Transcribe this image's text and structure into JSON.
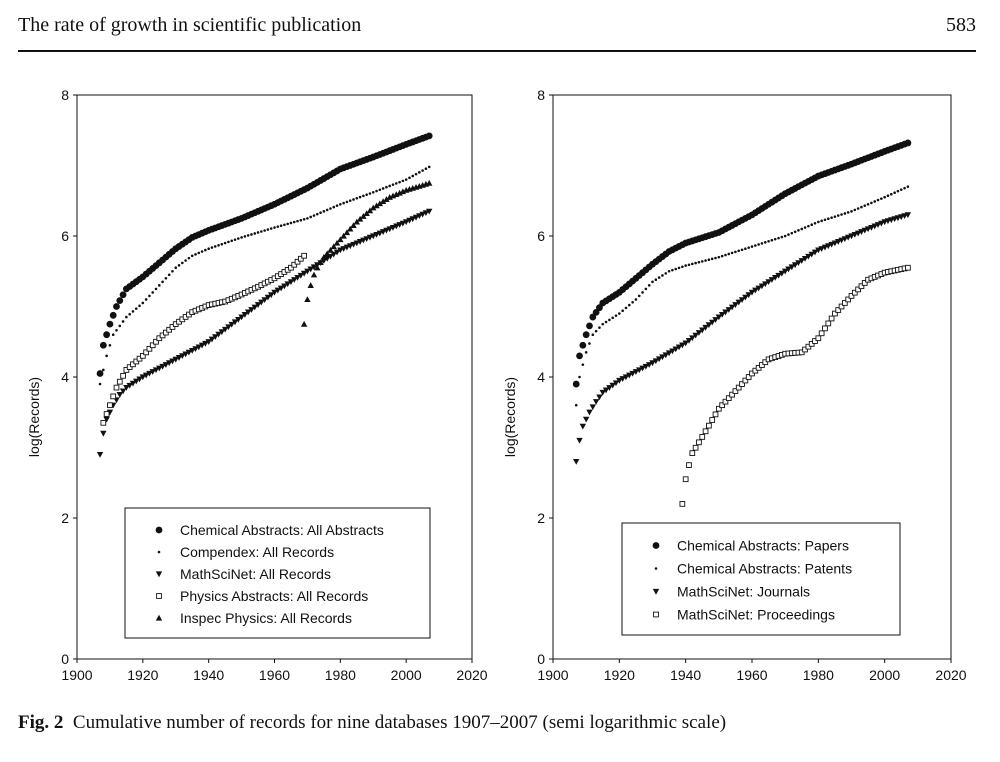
{
  "header": {
    "running_title": "The rate of growth in scientific publication",
    "page_number": "583"
  },
  "caption": {
    "label": "Fig. 2",
    "text": "Cumulative number of records for nine databases 1907–2007 (semi logarithmic scale)"
  },
  "chart_data": [
    {
      "type": "scatter",
      "title": "",
      "xlabel": "",
      "ylabel": "log(Records)",
      "xlim": [
        1900,
        2020
      ],
      "ylim": [
        0,
        8
      ],
      "x_ticks": [
        "1900",
        "1920",
        "1940",
        "1960",
        "1980",
        "2000",
        "2020"
      ],
      "y_ticks": [
        "0",
        "2",
        "4",
        "6",
        "8"
      ],
      "grid": false,
      "legend_position": "bottom-center",
      "series": [
        {
          "name": "Chemical Abstracts: All Abstracts",
          "marker": "filled-circle",
          "x_start": 1907,
          "x_end": 2007,
          "knots": [
            [
              1907,
              4.05
            ],
            [
              1908,
              4.45
            ],
            [
              1910,
              4.75
            ],
            [
              1912,
              5.0
            ],
            [
              1915,
              5.25
            ],
            [
              1920,
              5.42
            ],
            [
              1925,
              5.62
            ],
            [
              1930,
              5.82
            ],
            [
              1935,
              5.98
            ],
            [
              1940,
              6.08
            ],
            [
              1950,
              6.25
            ],
            [
              1960,
              6.45
            ],
            [
              1970,
              6.68
            ],
            [
              1980,
              6.95
            ],
            [
              1990,
              7.12
            ],
            [
              2000,
              7.3
            ],
            [
              2007,
              7.42
            ]
          ]
        },
        {
          "name": "Compendex: All Records",
          "marker": "small-dot",
          "x_start": 1907,
          "x_end": 2007,
          "knots": [
            [
              1907,
              3.9
            ],
            [
              1909,
              4.3
            ],
            [
              1911,
              4.6
            ],
            [
              1915,
              4.85
            ],
            [
              1920,
              5.05
            ],
            [
              1925,
              5.3
            ],
            [
              1930,
              5.55
            ],
            [
              1935,
              5.72
            ],
            [
              1940,
              5.82
            ],
            [
              1950,
              5.98
            ],
            [
              1960,
              6.12
            ],
            [
              1970,
              6.25
            ],
            [
              1980,
              6.45
            ],
            [
              1990,
              6.62
            ],
            [
              2000,
              6.8
            ],
            [
              2007,
              6.98
            ]
          ]
        },
        {
          "name": "MathSciNet: All Records",
          "marker": "down-triangle",
          "x_start": 1907,
          "x_end": 2007,
          "knots": [
            [
              1907,
              2.9
            ],
            [
              1908,
              3.2
            ],
            [
              1909,
              3.4
            ],
            [
              1911,
              3.6
            ],
            [
              1913,
              3.75
            ],
            [
              1915,
              3.85
            ],
            [
              1920,
              4.0
            ],
            [
              1930,
              4.25
            ],
            [
              1940,
              4.5
            ],
            [
              1950,
              4.85
            ],
            [
              1960,
              5.2
            ],
            [
              1970,
              5.5
            ],
            [
              1980,
              5.8
            ],
            [
              1990,
              6.0
            ],
            [
              2000,
              6.2
            ],
            [
              2007,
              6.35
            ]
          ]
        },
        {
          "name": "Physics Abstracts: All Records",
          "marker": "open-square",
          "x_start": 1908,
          "x_end": 1969,
          "knots": [
            [
              1908,
              3.35
            ],
            [
              1910,
              3.6
            ],
            [
              1912,
              3.85
            ],
            [
              1915,
              4.1
            ],
            [
              1920,
              4.3
            ],
            [
              1925,
              4.55
            ],
            [
              1930,
              4.75
            ],
            [
              1935,
              4.92
            ],
            [
              1940,
              5.02
            ],
            [
              1945,
              5.07
            ],
            [
              1950,
              5.17
            ],
            [
              1955,
              5.28
            ],
            [
              1960,
              5.4
            ],
            [
              1965,
              5.55
            ],
            [
              1969,
              5.72
            ]
          ]
        },
        {
          "name": "Inspec Physics: All Records",
          "marker": "up-triangle",
          "x_start": 1969,
          "x_end": 2007,
          "knots": [
            [
              1969,
              4.75
            ],
            [
              1970,
              5.1
            ],
            [
              1971,
              5.3
            ],
            [
              1972,
              5.45
            ],
            [
              1973,
              5.55
            ],
            [
              1975,
              5.7
            ],
            [
              1980,
              5.95
            ],
            [
              1985,
              6.2
            ],
            [
              1990,
              6.4
            ],
            [
              1995,
              6.55
            ],
            [
              2000,
              6.65
            ],
            [
              2007,
              6.75
            ]
          ]
        }
      ]
    },
    {
      "type": "scatter",
      "title": "",
      "xlabel": "",
      "ylabel": "log(Records)",
      "xlim": [
        1900,
        2020
      ],
      "ylim": [
        0,
        8
      ],
      "x_ticks": [
        "1900",
        "1920",
        "1940",
        "1960",
        "1980",
        "2000",
        "2020"
      ],
      "y_ticks": [
        "0",
        "2",
        "4",
        "6",
        "8"
      ],
      "grid": false,
      "legend_position": "bottom-center",
      "series": [
        {
          "name": "Chemical Abstracts: Papers",
          "marker": "filled-circle",
          "x_start": 1907,
          "x_end": 2007,
          "knots": [
            [
              1907,
              3.9
            ],
            [
              1908,
              4.3
            ],
            [
              1910,
              4.6
            ],
            [
              1912,
              4.85
            ],
            [
              1915,
              5.05
            ],
            [
              1920,
              5.2
            ],
            [
              1925,
              5.4
            ],
            [
              1930,
              5.6
            ],
            [
              1935,
              5.78
            ],
            [
              1940,
              5.9
            ],
            [
              1950,
              6.05
            ],
            [
              1960,
              6.3
            ],
            [
              1970,
              6.6
            ],
            [
              1980,
              6.85
            ],
            [
              1990,
              7.02
            ],
            [
              2000,
              7.2
            ],
            [
              2007,
              7.32
            ]
          ]
        },
        {
          "name": "Chemical Abstracts: Patents",
          "marker": "small-dot",
          "x_start": 1907,
          "x_end": 2007,
          "knots": [
            [
              1907,
              3.6
            ],
            [
              1908,
              4.0
            ],
            [
              1910,
              4.35
            ],
            [
              1912,
              4.6
            ],
            [
              1915,
              4.75
            ],
            [
              1920,
              4.9
            ],
            [
              1925,
              5.1
            ],
            [
              1930,
              5.35
            ],
            [
              1935,
              5.5
            ],
            [
              1940,
              5.58
            ],
            [
              1950,
              5.7
            ],
            [
              1960,
              5.85
            ],
            [
              1970,
              6.0
            ],
            [
              1980,
              6.2
            ],
            [
              1990,
              6.35
            ],
            [
              2000,
              6.55
            ],
            [
              2007,
              6.7
            ]
          ]
        },
        {
          "name": "MathSciNet: Journals",
          "marker": "down-triangle",
          "x_start": 1907,
          "x_end": 2007,
          "knots": [
            [
              1907,
              2.8
            ],
            [
              1908,
              3.1
            ],
            [
              1909,
              3.3
            ],
            [
              1911,
              3.5
            ],
            [
              1913,
              3.65
            ],
            [
              1915,
              3.78
            ],
            [
              1920,
              3.95
            ],
            [
              1930,
              4.2
            ],
            [
              1940,
              4.48
            ],
            [
              1950,
              4.85
            ],
            [
              1960,
              5.2
            ],
            [
              1970,
              5.5
            ],
            [
              1980,
              5.8
            ],
            [
              1990,
              6.0
            ],
            [
              2000,
              6.2
            ],
            [
              2007,
              6.3
            ]
          ]
        },
        {
          "name": "MathSciNet: Proceedings",
          "marker": "open-square",
          "x_start": 1939,
          "x_end": 2007,
          "knots": [
            [
              1939,
              2.2
            ],
            [
              1940,
              2.55
            ],
            [
              1941,
              2.75
            ],
            [
              1942,
              2.92
            ],
            [
              1945,
              3.15
            ],
            [
              1950,
              3.55
            ],
            [
              1955,
              3.8
            ],
            [
              1960,
              4.05
            ],
            [
              1965,
              4.25
            ],
            [
              1970,
              4.33
            ],
            [
              1975,
              4.35
            ],
            [
              1980,
              4.55
            ],
            [
              1985,
              4.9
            ],
            [
              1990,
              5.15
            ],
            [
              1995,
              5.38
            ],
            [
              2000,
              5.48
            ],
            [
              2007,
              5.55
            ]
          ]
        }
      ]
    }
  ]
}
